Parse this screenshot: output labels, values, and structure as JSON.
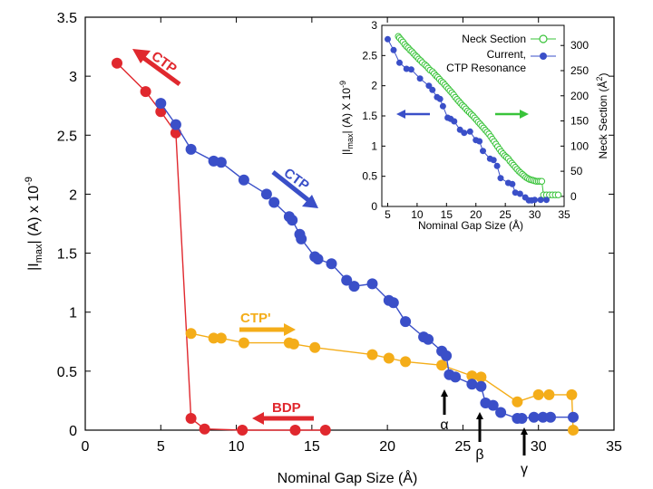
{
  "chart_data": [
    {
      "type": "line",
      "id": "main",
      "title": "",
      "xlabel": "Nominal Gap Size (Å)",
      "ylabel": "|I_max| (A) x 10^-9",
      "ylabel_parts": {
        "pre": "|I",
        "sub": "max",
        "mid": "| (A) x 10",
        "sup": "-9"
      },
      "xlim": [
        0,
        35
      ],
      "ylim": [
        0,
        3.5
      ],
      "xticks": [
        0,
        5,
        10,
        15,
        20,
        25,
        30,
        35
      ],
      "xtick_labels": [
        "0",
        "5",
        "10",
        "15",
        "20",
        "25",
        "30",
        "35"
      ],
      "yticks": [
        0,
        0.5,
        1,
        1.5,
        2,
        2.5,
        3,
        3.5
      ],
      "ytick_labels": [
        "0",
        "0.5",
        "1",
        "1.5",
        "2",
        "2.5",
        "3",
        "3.5"
      ],
      "grid": false,
      "series": [
        {
          "name": "CTP",
          "color": "#3a4fc8",
          "x": [
            5.0,
            6.0,
            7.0,
            8.5,
            9.0,
            10.5,
            12.0,
            12.5,
            13.5,
            13.7,
            14.2,
            14.3,
            15.2,
            15.4,
            16.3,
            17.3,
            17.8,
            19.0,
            20.1,
            20.4,
            21.2,
            22.4,
            22.7,
            23.6,
            23.9,
            24.1,
            24.5,
            25.6,
            26.2,
            26.5,
            27.0,
            27.5,
            28.6,
            28.9,
            29.7,
            30.3,
            30.8,
            32.3
          ],
          "y": [
            2.77,
            2.59,
            2.38,
            2.28,
            2.27,
            2.12,
            2.0,
            1.93,
            1.81,
            1.78,
            1.66,
            1.62,
            1.47,
            1.45,
            1.41,
            1.27,
            1.22,
            1.24,
            1.1,
            1.08,
            0.92,
            0.79,
            0.77,
            0.67,
            0.63,
            0.47,
            0.45,
            0.39,
            0.37,
            0.23,
            0.21,
            0.15,
            0.1,
            0.1,
            0.11,
            0.11,
            0.11,
            0.11
          ]
        },
        {
          "name": "CTP'",
          "color": "#f4ad19",
          "x": [
            7.0,
            8.5,
            9.0,
            10.5,
            13.5,
            13.8,
            15.2,
            19.0,
            20.1,
            21.2,
            23.6,
            25.6,
            26.2,
            28.6,
            30.0,
            30.7,
            32.2,
            32.3
          ],
          "y": [
            0.82,
            0.78,
            0.78,
            0.74,
            0.74,
            0.73,
            0.7,
            0.64,
            0.61,
            0.58,
            0.55,
            0.46,
            0.45,
            0.24,
            0.3,
            0.3,
            0.3,
            0.0
          ]
        },
        {
          "name": "BDP",
          "color": "#e0282e",
          "x": [
            2.1,
            4.0,
            5.0,
            6.0,
            7.0,
            7.9,
            10.4,
            13.9,
            15.9
          ],
          "y": [
            3.11,
            2.87,
            2.7,
            2.52,
            0.1,
            0.01,
            0.0,
            0.0,
            0.0
          ]
        }
      ],
      "annotations": [
        {
          "text": "CTP",
          "color": "#e0282e"
        },
        {
          "text": "CTP",
          "color": "#3a4fc8"
        },
        {
          "text": "CTP'",
          "color": "#f4ad19"
        },
        {
          "text": "BDP",
          "color": "#e0282e"
        },
        {
          "text": "α",
          "x": 23.7,
          "y": 0.3
        },
        {
          "text": "β",
          "x": 26.0,
          "y": 0.3
        },
        {
          "text": "γ",
          "x": 29.0,
          "y": 0.3
        }
      ]
    },
    {
      "type": "line",
      "id": "inset",
      "xlabel": "Nominal Gap Size (Å)",
      "ylabel_left": "|I_max| (A) X 10^-9",
      "ylabel_left_parts": {
        "pre": "|I",
        "sub": "max",
        "mid": "| (A) X 10",
        "sup": "-9"
      },
      "ylabel_right": "Neck Section (Å²)",
      "ylabel_right_parts": {
        "pre": "Neck Section (Å",
        "sup": "2",
        "post": ")"
      },
      "xlim": [
        4,
        35
      ],
      "ylim_left": [
        0,
        3
      ],
      "ylim_right": [
        -20,
        340
      ],
      "xticks": [
        5,
        10,
        15,
        20,
        25,
        30,
        35
      ],
      "xtick_labels": [
        "5",
        "10",
        "15",
        "20",
        "25",
        "30",
        "35"
      ],
      "yticks_left": [
        0,
        0.5,
        1,
        1.5,
        2,
        2.5,
        3
      ],
      "ytick_labels_left": [
        "0",
        "0.5",
        "1",
        "1.5",
        "2",
        "2.5",
        "3"
      ],
      "yticks_right": [
        0,
        50,
        100,
        150,
        200,
        250,
        300
      ],
      "ytick_labels_right": [
        "0",
        "50",
        "100",
        "150",
        "200",
        "250",
        "300"
      ],
      "legend": {
        "placement": "top-right",
        "entries": [
          {
            "label": "Neck Section",
            "color": "#39c33a",
            "marker": "open-circle"
          },
          {
            "label": "Current,",
            "color": "#3a4fc8",
            "marker": "filled-circle"
          },
          {
            "label": "CTP Resonance",
            "color": "#3a4fc8",
            "marker": "none"
          }
        ]
      },
      "series": [
        {
          "name": "Current, CTP Resonance",
          "axis": "left",
          "color": "#3a4fc8",
          "x": [
            5,
            6,
            7,
            8.2,
            9,
            10.5,
            12,
            12.6,
            13.4,
            13.9,
            14.4,
            15.2,
            15.7,
            16.3,
            17.3,
            18,
            19,
            20,
            20.6,
            21.2,
            22.4,
            23.0,
            23.6,
            24.2,
            25.5,
            26.2,
            26.7,
            27.5,
            28.4,
            29.0,
            29.5,
            30.0,
            31.0,
            32.0
          ],
          "y": [
            2.77,
            2.59,
            2.38,
            2.28,
            2.27,
            2.12,
            2.0,
            1.93,
            1.81,
            1.78,
            1.66,
            1.47,
            1.45,
            1.41,
            1.27,
            1.22,
            1.24,
            1.1,
            1.08,
            0.92,
            0.79,
            0.77,
            0.67,
            0.47,
            0.39,
            0.37,
            0.23,
            0.21,
            0.15,
            0.1,
            0.1,
            0.11,
            0.11,
            0.11
          ]
        },
        {
          "name": "Neck Section",
          "axis": "right",
          "color": "#39c33a",
          "x": [
            6.8,
            7.0,
            7.3,
            7.6,
            7.9,
            8.2,
            8.5,
            8.8,
            9.1,
            9.4,
            9.7,
            10.0,
            10.3,
            10.6,
            10.9,
            11.3,
            11.6,
            11.9,
            12.2,
            12.6,
            12.9,
            13.2,
            13.5,
            13.8,
            14.1,
            14.4,
            14.7,
            15.0,
            15.3,
            15.6,
            15.9,
            16.2,
            16.5,
            16.8,
            17.1,
            17.4,
            17.7,
            18.0,
            18.3,
            18.6,
            18.9,
            19.2,
            19.5,
            19.8,
            20.1,
            20.4,
            20.7,
            21.0,
            21.3,
            21.6,
            21.9,
            22.2,
            22.5,
            22.8,
            23.1,
            23.4,
            23.7,
            24.0,
            24.3,
            24.6,
            24.9,
            25.2,
            25.5,
            25.8,
            26.1,
            26.4,
            26.7,
            27.0,
            27.3,
            27.6,
            27.9,
            28.2,
            28.5,
            28.8,
            29.1,
            29.4,
            29.7,
            30.0,
            30.3,
            30.6,
            30.9,
            31.2,
            31.5,
            32.0,
            32.5,
            33.0,
            33.5,
            34.0
          ],
          "y": [
            318,
            315,
            311,
            307,
            302,
            298,
            295,
            291,
            288,
            284,
            280,
            277,
            273,
            270,
            266,
            262,
            259,
            255,
            251,
            248,
            244,
            240,
            237,
            233,
            229,
            226,
            222,
            218,
            214,
            210,
            206,
            202,
            197,
            193,
            189,
            185,
            181,
            178,
            174,
            170,
            167,
            163,
            160,
            156,
            152,
            148,
            144,
            140,
            136,
            132,
            128,
            124,
            119,
            114,
            109,
            104,
            99,
            94,
            89,
            85,
            81,
            78,
            75,
            70,
            66,
            62,
            58,
            54,
            50,
            47,
            44,
            41,
            38,
            36,
            34,
            33,
            32,
            31,
            30,
            30,
            30,
            30,
            3,
            3,
            3,
            3,
            3,
            3
          ]
        }
      ]
    }
  ]
}
